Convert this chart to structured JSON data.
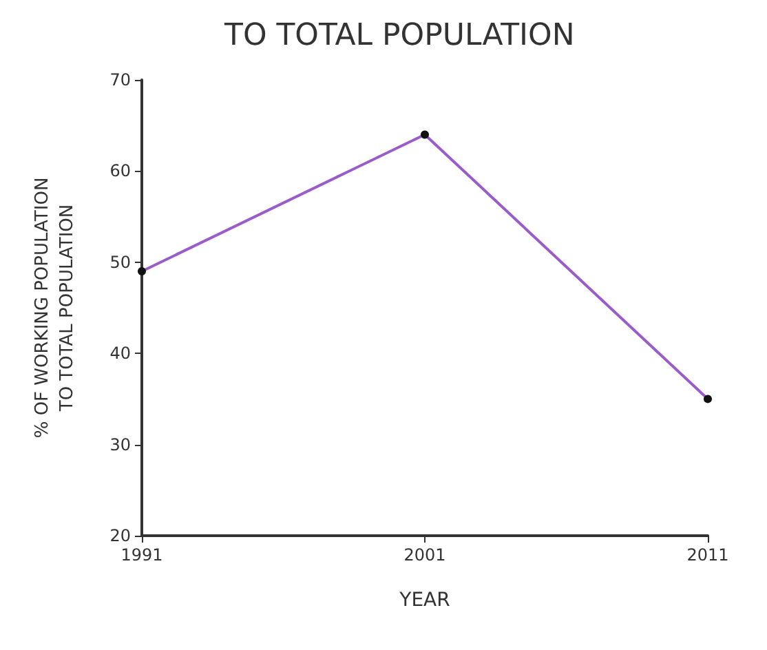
{
  "chart_data": {
    "type": "line",
    "title": "TO TOTAL POPULATION",
    "xlabel": "YEAR",
    "ylabel": "% OF WORKING POPULATION\nTO TOTAL POPULATION",
    "categories": [
      "1991",
      "2001",
      "2011"
    ],
    "series": [
      {
        "color": "#9a5cc8",
        "values": [
          49,
          64,
          35
        ]
      }
    ],
    "ylim": [
      20,
      70
    ],
    "yticks": [
      20,
      30,
      40,
      50,
      60,
      70
    ],
    "grid": false,
    "marker": "circle",
    "line_style": "solid"
  }
}
